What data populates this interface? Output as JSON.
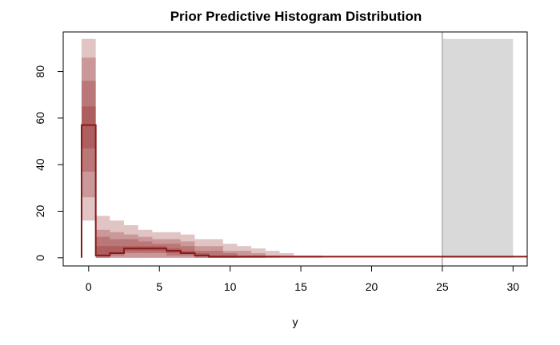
{
  "chart_data": {
    "type": "bar",
    "title": "Prior Predictive Histogram Distribution",
    "xlabel": "y",
    "ylabel": "",
    "xlim": [
      -1.8,
      31
    ],
    "ylim": [
      -3.5,
      97
    ],
    "x_ticks": [
      0,
      5,
      10,
      15,
      20,
      25,
      30
    ],
    "y_ticks": [
      0,
      20,
      40,
      60,
      80
    ],
    "grid": false,
    "legend": "none",
    "colors": {
      "band": "#8B1A1A",
      "median": "#8B1A1A",
      "truncation_region": "#d9d9d9",
      "truncation_line": "#bdbdbd"
    },
    "band_opacity": 0.26,
    "bins": [
      0,
      1,
      2,
      3,
      4,
      5,
      6,
      7,
      8,
      9,
      10,
      11,
      12,
      13,
      14,
      15,
      16
    ],
    "bands": [
      {
        "lo": [
          16,
          0,
          0,
          0,
          0,
          0,
          0,
          0,
          0,
          0,
          0,
          0,
          0,
          0,
          0,
          0,
          0
        ],
        "hi": [
          94,
          18,
          16,
          14,
          12,
          11,
          11,
          10,
          8,
          8,
          6,
          5,
          4,
          3,
          2,
          1,
          1
        ]
      },
      {
        "lo": [
          26,
          0,
          0,
          0,
          0,
          0,
          0,
          0,
          0,
          0,
          0,
          0,
          0,
          0,
          0,
          0,
          0
        ],
        "hi": [
          86,
          12,
          11,
          10,
          9,
          8,
          8,
          7,
          5,
          5,
          3,
          3,
          2,
          1,
          0,
          0,
          0
        ]
      },
      {
        "lo": [
          37,
          0,
          1,
          2,
          2,
          2,
          1,
          1,
          0,
          0,
          0,
          0,
          0,
          0,
          0,
          0,
          0
        ],
        "hi": [
          76,
          9,
          8,
          8,
          7,
          6,
          6,
          5,
          3,
          3,
          2,
          1,
          1,
          0,
          0,
          0,
          0
        ]
      },
      {
        "lo": [
          47,
          1,
          2,
          3,
          3,
          3,
          2,
          2,
          1,
          0,
          0,
          0,
          0,
          0,
          0,
          0,
          0
        ],
        "hi": [
          65,
          5,
          5,
          5,
          5,
          5,
          4,
          3,
          2,
          1,
          1,
          0,
          0,
          0,
          0,
          0,
          0
        ]
      }
    ],
    "median": {
      "x": [
        0,
        1,
        2,
        3,
        4,
        5,
        6,
        7,
        8,
        9,
        10,
        11,
        12,
        13,
        14,
        15,
        16,
        17,
        18,
        19,
        20,
        21,
        22,
        23,
        24,
        25,
        26,
        27,
        28,
        29,
        30
      ],
      "values": [
        57,
        1,
        2,
        4,
        4,
        4,
        3,
        2,
        1,
        0.5,
        0.5,
        0.5,
        0.5,
        0.5,
        0.5,
        0.5,
        0.5,
        0.5,
        0.5,
        0.5,
        0.5,
        0.5,
        0.5,
        0.5,
        0.5,
        0.5,
        0.5,
        0.5,
        0.5,
        0.5,
        0.5
      ]
    },
    "truncation": {
      "x_from": 25,
      "x_to": 30,
      "y_top": 94
    }
  }
}
